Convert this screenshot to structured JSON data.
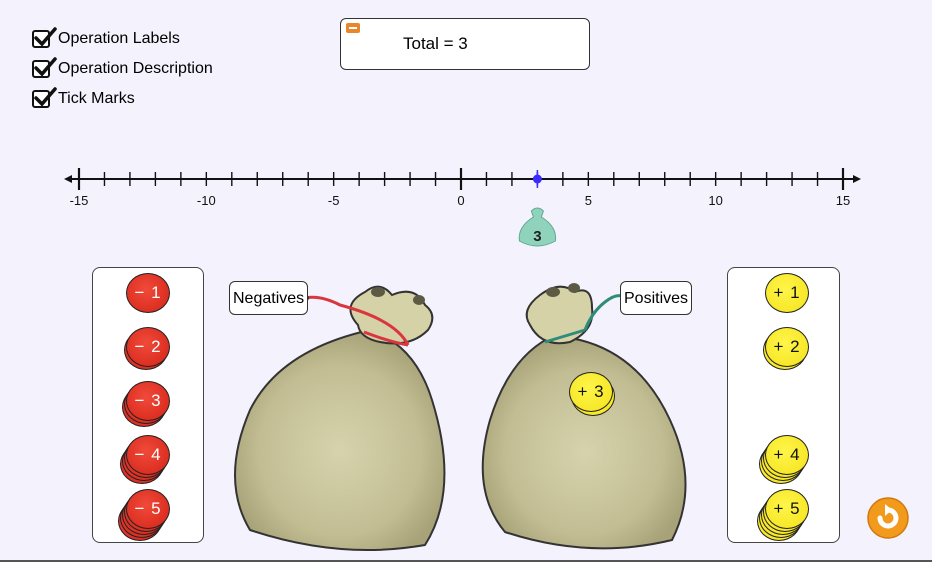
{
  "checkboxes": [
    {
      "label": "Operation Labels",
      "checked": true
    },
    {
      "label": "Operation Description",
      "checked": true
    },
    {
      "label": "Tick Marks",
      "checked": true
    }
  ],
  "total": {
    "text": "Total = 3"
  },
  "number_line": {
    "min": -15,
    "max": 15,
    "tick_labels": [
      "-15",
      "-10",
      "-5",
      "0",
      "5",
      "10",
      "15"
    ],
    "marker_value": 3,
    "marker_label": "3"
  },
  "bags": {
    "negative_label": "Negatives",
    "positive_label": "Positives"
  },
  "negative_coins": [
    "− 1",
    "− 2",
    "− 3",
    "− 4",
    "− 5"
  ],
  "positive_coins": [
    "+ 1",
    "+ 2",
    "+ 4",
    "+ 5"
  ],
  "coin_in_bag": "+ 3",
  "colors": {
    "background": "#f4f2fd",
    "negative_coin": "#e0261a",
    "positive_coin": "#f7e724",
    "negative_string": "#d9363e",
    "positive_string": "#2f8c7a",
    "marker_dot": "#3a2bff",
    "marker_bag": "#8fd3bd",
    "reset_button": "#f29a1c"
  }
}
